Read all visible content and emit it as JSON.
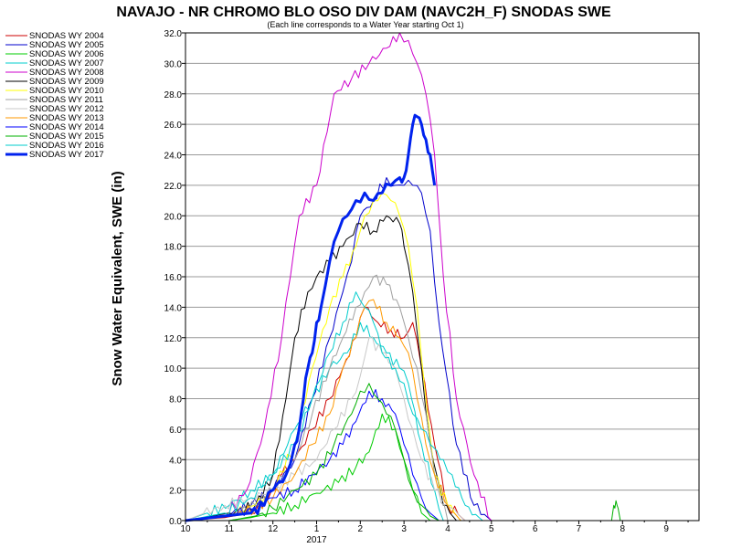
{
  "chart_data": {
    "type": "line",
    "title": "NAVAJO - NR CHROMO BLO OSO DIV DAM (NAVC2H_F) SNODAS SWE",
    "subtitle": "(Each line corresponds to a Water Year starting Oct 1)",
    "ylabel": "Snow Water Equivalent, SWE (in)",
    "xlabel": "",
    "ylim": [
      0,
      32
    ],
    "yticks": [
      "0.0",
      "2.0",
      "4.0",
      "6.0",
      "8.0",
      "10.0",
      "12.0",
      "14.0",
      "16.0",
      "18.0",
      "20.0",
      "22.0",
      "24.0",
      "26.0",
      "28.0",
      "30.0",
      "32.0"
    ],
    "xlim": [
      10,
      10.75
    ],
    "month_labels": [
      "10",
      "11",
      "12",
      "1",
      "2",
      "3",
      "4",
      "5",
      "6",
      "7",
      "8",
      "9"
    ],
    "year_label": "2017",
    "grid": true,
    "legend_position": "left",
    "series": [
      {
        "name": "SNODAS WY 2004",
        "color": "#cc0000",
        "width": 1,
        "x": [
          10,
          10.9,
          11.5,
          11.9,
          12.2,
          12.5,
          12.9,
          13.3,
          13.6,
          13.9,
          14.1,
          14.4,
          14.7,
          15.0,
          15.2,
          15.4,
          15.7,
          16.0,
          16.4
        ],
        "y": [
          0,
          0.2,
          0.5,
          1.5,
          3,
          4,
          6,
          8,
          10,
          12,
          14,
          13,
          12.5,
          12,
          13,
          10,
          5,
          1,
          0
        ]
      },
      {
        "name": "SNODAS WY 2005",
        "color": "#0000cc",
        "width": 1,
        "x": [
          10,
          10.9,
          11.5,
          12.0,
          12.5,
          12.9,
          13.3,
          13.6,
          13.8,
          14.0,
          14.3,
          14.6,
          14.8,
          15.0,
          15.2,
          15.4,
          15.6,
          15.8,
          16.2,
          16.6,
          17.0
        ],
        "y": [
          0,
          0.3,
          1,
          2,
          4,
          8,
          12,
          15,
          17,
          20,
          21,
          22.5,
          22,
          22,
          22,
          21.5,
          19,
          13,
          5,
          1,
          0
        ]
      },
      {
        "name": "SNODAS WY 2006",
        "color": "#00cc00",
        "width": 1,
        "x": [
          10,
          11.0,
          11.5,
          12.0,
          12.5,
          13.0,
          13.5,
          13.9,
          14.2,
          14.5,
          14.8,
          15.0,
          15.2,
          15.4,
          15.6
        ],
        "y": [
          0,
          0,
          0.2,
          0.5,
          1,
          1.8,
          2.5,
          3.5,
          4.5,
          7,
          6,
          4,
          2,
          0.5,
          0
        ]
      },
      {
        "name": "SNODAS WY 2007",
        "color": "#00cccc",
        "width": 1,
        "x": [
          10,
          11.0,
          11.5,
          12.0,
          12.5,
          12.9,
          13.3,
          13.7,
          14.0,
          14.3,
          14.6,
          14.9,
          15.1,
          15.4,
          15.7,
          15.9
        ],
        "y": [
          0,
          1,
          2,
          3,
          6,
          8,
          10,
          11,
          13,
          12,
          11,
          10,
          9,
          5,
          2,
          0
        ]
      },
      {
        "name": "SNODAS WY 2008",
        "color": "#cc00cc",
        "width": 1,
        "x": [
          10,
          10.9,
          11.4,
          11.8,
          12.2,
          12.4,
          12.6,
          13.0,
          13.4,
          13.8,
          14.2,
          14.6,
          14.9,
          15.1,
          15.3,
          15.5,
          15.7,
          15.9,
          16.2,
          16.6,
          17.0
        ],
        "y": [
          0,
          0.3,
          2,
          6,
          12,
          16,
          20,
          22,
          28,
          29,
          30,
          31,
          32,
          31.5,
          30,
          28,
          24,
          16,
          8,
          3,
          0
        ]
      },
      {
        "name": "SNODAS WY 2009",
        "color": "#000000",
        "width": 1,
        "x": [
          10,
          11.0,
          11.6,
          12.0,
          12.3,
          12.5,
          12.8,
          13.0,
          13.3,
          13.6,
          14.0,
          14.3,
          14.6,
          14.9,
          15.0,
          15.2,
          15.4,
          15.6,
          15.9,
          16.2
        ],
        "y": [
          0,
          0.5,
          1,
          3,
          8,
          12,
          15,
          16,
          17,
          18,
          19.5,
          19,
          20,
          19.5,
          18,
          15,
          10,
          5,
          1,
          0
        ]
      },
      {
        "name": "SNODAS WY 2010",
        "color": "#ffff00",
        "width": 1,
        "x": [
          10,
          11.0,
          11.6,
          12.0,
          12.5,
          12.9,
          13.3,
          13.6,
          13.9,
          14.1,
          14.3,
          14.5,
          14.7,
          14.9,
          15.1,
          15.3,
          15.5,
          15.7,
          16.0,
          16.3
        ],
        "y": [
          0,
          0.3,
          1,
          2,
          5,
          10,
          14,
          16,
          18,
          20,
          21,
          21.5,
          21,
          20,
          18,
          14,
          8,
          3,
          1,
          0
        ]
      },
      {
        "name": "SNODAS WY 2011",
        "color": "#a0a0a0",
        "width": 1,
        "x": [
          10,
          11.0,
          11.6,
          12.0,
          12.5,
          12.9,
          13.3,
          13.6,
          13.9,
          14.1,
          14.3,
          14.6,
          14.9,
          15.1,
          15.3,
          15.5,
          15.7,
          16.0
        ],
        "y": [
          0,
          0.3,
          1,
          2,
          4,
          7,
          10,
          12,
          14,
          15,
          16,
          15.5,
          14,
          12,
          10,
          7,
          3,
          0
        ]
      },
      {
        "name": "SNODAS WY 2012",
        "color": "#c8c8c8",
        "width": 1,
        "x": [
          10,
          10.9,
          11.5,
          12.0,
          12.5,
          13.0,
          13.4,
          13.8,
          14.0,
          14.2,
          14.5,
          14.8,
          15.0,
          15.2,
          15.4,
          15.7,
          16.0,
          16.4
        ],
        "y": [
          0,
          1,
          1.5,
          2,
          3,
          4,
          6,
          8,
          9.5,
          12,
          11,
          10,
          8,
          6,
          4,
          2,
          1,
          0
        ]
      },
      {
        "name": "SNODAS WY 2013",
        "color": "#ff9900",
        "width": 1,
        "x": [
          10,
          11.0,
          11.6,
          12.0,
          12.5,
          12.9,
          13.3,
          13.6,
          13.9,
          14.1,
          14.3,
          14.6,
          14.9,
          15.1,
          15.3,
          15.5,
          15.7,
          16.0,
          16.3
        ],
        "y": [
          0,
          0.3,
          0.8,
          1.5,
          3,
          5,
          7,
          10,
          12,
          14,
          14.5,
          13,
          12,
          11,
          8,
          5,
          3,
          1,
          0
        ]
      },
      {
        "name": "SNODAS WY 2014",
        "color": "#0000ff",
        "width": 1,
        "x": [
          10,
          11.0,
          11.6,
          12.0,
          12.5,
          12.9,
          13.3,
          13.6,
          13.9,
          14.2,
          14.5,
          14.8,
          15.0,
          15.2,
          15.4,
          15.6,
          15.8
        ],
        "y": [
          0,
          0.3,
          0.8,
          1.5,
          2,
          3,
          4,
          5,
          6.5,
          8.5,
          8,
          7,
          5,
          3,
          1.5,
          0.5,
          0
        ]
      },
      {
        "name": "SNODAS WY 2015",
        "color": "#00b000",
        "width": 1,
        "x": [
          10,
          11.0,
          11.6,
          12.0,
          12.5,
          13.0,
          13.4,
          13.8,
          14.0,
          14.2,
          14.4,
          14.6,
          14.8,
          15.0,
          15.2,
          15.4,
          15.6,
          15.8,
          19.75,
          19.8,
          19.85,
          19.9,
          19.95
        ],
        "y": [
          0,
          0,
          0.3,
          0.8,
          2,
          3,
          5,
          7,
          8.5,
          9,
          8,
          7,
          6,
          4,
          2,
          1,
          0.3,
          0,
          0,
          1,
          1.3,
          0.8,
          0
        ]
      },
      {
        "name": "SNODAS WY 2016",
        "color": "#00cccc",
        "width": 1,
        "x": [
          10,
          10.9,
          11.5,
          12.0,
          12.5,
          12.9,
          13.3,
          13.6,
          13.9,
          14.1,
          14.3,
          14.5,
          14.8,
          15.0,
          15.2,
          15.4,
          15.6,
          15.9,
          16.1,
          16.4,
          16.8
        ],
        "y": [
          0,
          0.5,
          1.5,
          3,
          5,
          8,
          11,
          13,
          15,
          14,
          13,
          11,
          10,
          9,
          7,
          6,
          5,
          4,
          3,
          1,
          0
        ]
      },
      {
        "name": "SNODAS WY 2017",
        "color": "#0022ee",
        "width": 3,
        "x": [
          10,
          10.9,
          11.5,
          11.8,
          12.0,
          12.3,
          12.5,
          12.6,
          12.7,
          12.8,
          12.9,
          13.0,
          13.1,
          13.3,
          13.5,
          13.7,
          13.9,
          14.1,
          14.3,
          14.5,
          14.7,
          14.9,
          15.0,
          15.1,
          15.2,
          15.3,
          15.4,
          15.5,
          15.6,
          15.7
        ],
        "y": [
          0,
          0.3,
          0.5,
          1,
          2,
          3,
          5,
          6,
          8,
          10,
          11,
          13,
          14,
          17,
          19,
          20,
          21,
          21.5,
          21,
          21.5,
          22,
          22.5,
          22.5,
          24,
          26,
          26.5,
          26,
          25,
          24,
          22
        ]
      }
    ]
  }
}
